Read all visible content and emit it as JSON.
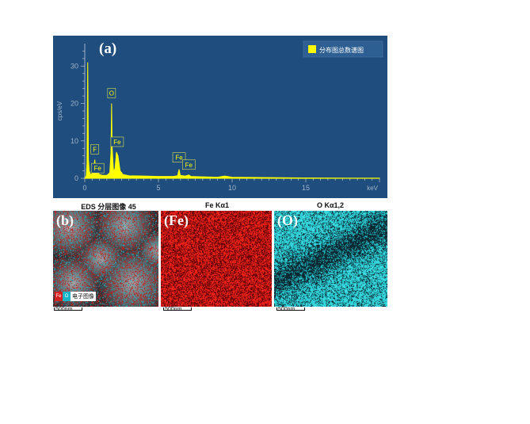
{
  "panel_a": {
    "letter": "(a)",
    "legend_label": "分布图总数谱图",
    "colors": {
      "background": "#1f4d7e",
      "spectrum": "#ffff00",
      "axis": "#9fb4c9"
    }
  },
  "chart_data": {
    "type": "line",
    "title": "",
    "xlabel": "keV",
    "ylabel": "cps/eV",
    "xlim": [
      0,
      20
    ],
    "ylim": [
      0,
      36
    ],
    "x_ticks": [
      "0",
      "5",
      "10",
      "15"
    ],
    "y_ticks": [
      "0",
      "10",
      "20",
      "30"
    ],
    "grid": false,
    "legend": "top-right",
    "series": [
      {
        "name": "分布图总数谱图",
        "points": [
          [
            0.0,
            0.0
          ],
          [
            0.1,
            0.6
          ],
          [
            0.15,
            4.0
          ],
          [
            0.2,
            31.0
          ],
          [
            0.25,
            5.0
          ],
          [
            0.3,
            2.0
          ],
          [
            0.4,
            1.0
          ],
          [
            0.5,
            1.2
          ],
          [
            0.6,
            2.5
          ],
          [
            0.68,
            5.0
          ],
          [
            0.73,
            2.5
          ],
          [
            0.8,
            1.2
          ],
          [
            0.9,
            1.5
          ],
          [
            1.0,
            1.0
          ],
          [
            1.2,
            0.8
          ],
          [
            1.5,
            0.8
          ],
          [
            1.7,
            1.5
          ],
          [
            1.78,
            7.0
          ],
          [
            1.82,
            20.0
          ],
          [
            1.86,
            8.0
          ],
          [
            1.95,
            2.0
          ],
          [
            2.05,
            2.5
          ],
          [
            2.15,
            7.0
          ],
          [
            2.25,
            6.0
          ],
          [
            2.4,
            2.0
          ],
          [
            2.6,
            1.0
          ],
          [
            3.0,
            0.7
          ],
          [
            4.0,
            0.6
          ],
          [
            5.0,
            0.5
          ],
          [
            6.0,
            0.5
          ],
          [
            6.3,
            0.7
          ],
          [
            6.4,
            2.4
          ],
          [
            6.48,
            0.8
          ],
          [
            6.8,
            0.6
          ],
          [
            7.06,
            0.9
          ],
          [
            7.2,
            0.5
          ],
          [
            8.0,
            0.4
          ],
          [
            9.0,
            0.3
          ],
          [
            9.5,
            0.6
          ],
          [
            10.0,
            0.3
          ],
          [
            12.0,
            0.2
          ],
          [
            15.0,
            0.1
          ],
          [
            18.0,
            0.05
          ],
          [
            20.0,
            0.05
          ]
        ]
      }
    ],
    "peak_labels": [
      {
        "label": "F",
        "x": 0.68,
        "y": 5.0
      },
      {
        "label": "Fe",
        "x": 0.71,
        "y": 2.5
      },
      {
        "label": "O",
        "x": 1.82,
        "y": 20.0
      },
      {
        "label": "Fe",
        "x": 2.2,
        "y": 7.0
      },
      {
        "label": "Fe",
        "x": 6.4,
        "y": 2.4
      },
      {
        "label": "Fe",
        "x": 7.06,
        "y": 0.9
      }
    ]
  },
  "maps": {
    "layered": {
      "title": "EDS 分层图像 45",
      "letter": "(b)",
      "legend": {
        "fe": "Fe",
        "o": "O",
        "electron": "电子图像"
      },
      "scale": "500nm"
    },
    "fe": {
      "title": "Fe Kα1",
      "letter": "(Fe)",
      "scale": "500nm"
    },
    "o": {
      "title": "O Kα1,2",
      "letter": "(O)",
      "scale": "500nm"
    }
  }
}
